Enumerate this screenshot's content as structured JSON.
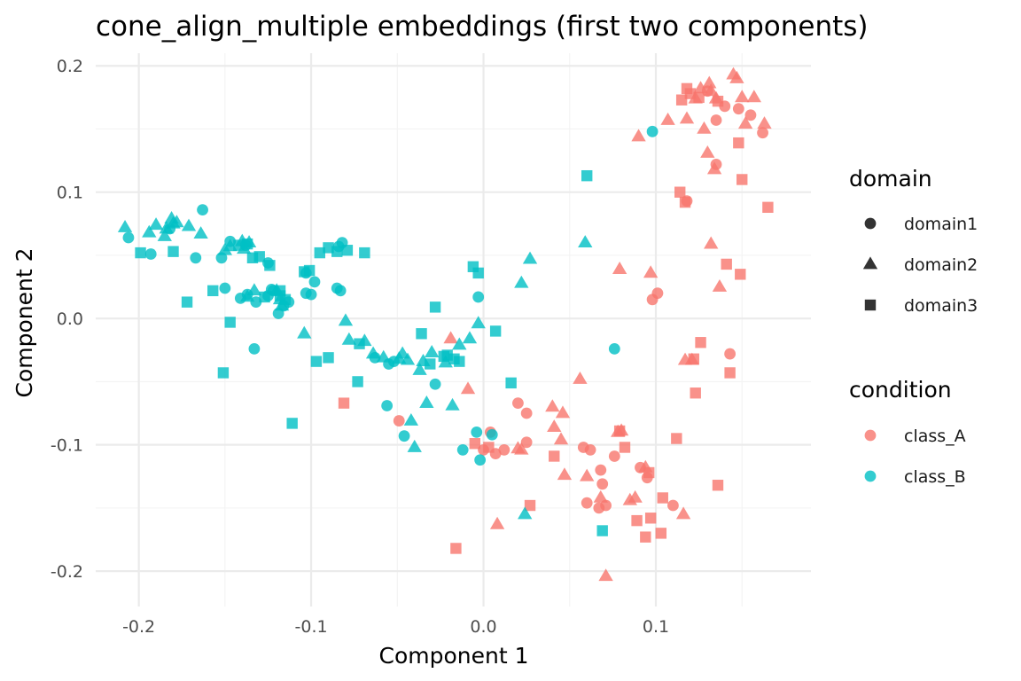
{
  "chart_data": {
    "type": "scatter",
    "title": "cone_align_multiple embeddings (first two components)",
    "xlabel": "Component 1",
    "ylabel": "Component 2",
    "xlim": [
      -0.225,
      0.19
    ],
    "ylim": [
      -0.228,
      0.21
    ],
    "x_ticks": [
      -0.2,
      -0.1,
      0.0,
      0.1
    ],
    "x_tick_labels": [
      "-0.2",
      "-0.1",
      "0.0",
      "0.1"
    ],
    "y_ticks": [
      -0.2,
      -0.1,
      0.0,
      0.1,
      0.2
    ],
    "y_tick_labels": [
      "-0.2",
      "-0.1",
      "0.0",
      "0.1",
      "0.2"
    ],
    "grid": true,
    "legend_position": "right",
    "legends": {
      "domain": {
        "title": "domain",
        "entries": [
          {
            "label": "domain1",
            "shape": "circle"
          },
          {
            "label": "domain2",
            "shape": "triangle"
          },
          {
            "label": "domain3",
            "shape": "square"
          }
        ]
      },
      "condition": {
        "title": "condition",
        "entries": [
          {
            "label": "class_A",
            "color": "#F8766D"
          },
          {
            "label": "class_B",
            "color": "#00BFC4"
          }
        ]
      }
    },
    "colors": {
      "class_A": "#F8766D",
      "class_B": "#00BFC4"
    },
    "series": [
      {
        "condition": "class_A",
        "domain": "domain1",
        "points": [
          [
            0.13,
            0.18
          ],
          [
            0.14,
            0.168
          ],
          [
            0.148,
            0.166
          ],
          [
            0.155,
            0.161
          ],
          [
            0.162,
            0.147
          ],
          [
            0.135,
            0.157
          ],
          [
            0.135,
            0.122
          ],
          [
            0.118,
            0.093
          ],
          [
            0.101,
            0.02
          ],
          [
            0.098,
            0.015
          ],
          [
            0.143,
            -0.028
          ],
          [
            0.02,
            -0.067
          ],
          [
            0.025,
            -0.075
          ],
          [
            0.004,
            -0.09
          ],
          [
            0.0,
            -0.104
          ],
          [
            0.007,
            -0.107
          ],
          [
            0.025,
            -0.098
          ],
          [
            0.058,
            -0.102
          ],
          [
            0.062,
            -0.104
          ],
          [
            0.068,
            -0.12
          ],
          [
            0.069,
            -0.131
          ],
          [
            0.06,
            -0.146
          ],
          [
            0.067,
            -0.15
          ],
          [
            0.071,
            -0.148
          ],
          [
            0.091,
            -0.118
          ],
          [
            0.095,
            -0.126
          ],
          [
            0.11,
            -0.148
          ],
          [
            -0.049,
            -0.081
          ],
          [
            0.012,
            -0.104
          ],
          [
            0.076,
            -0.109
          ]
        ]
      },
      {
        "condition": "class_A",
        "domain": "domain2",
        "points": [
          [
            0.145,
            0.193
          ],
          [
            0.147,
            0.19
          ],
          [
            0.126,
            0.182
          ],
          [
            0.131,
            0.186
          ],
          [
            0.123,
            0.174
          ],
          [
            0.135,
            0.174
          ],
          [
            0.132,
            0.18
          ],
          [
            0.15,
            0.175
          ],
          [
            0.157,
            0.175
          ],
          [
            0.152,
            0.154
          ],
          [
            0.163,
            0.154
          ],
          [
            0.118,
            0.158
          ],
          [
            0.128,
            0.15
          ],
          [
            0.107,
            0.157
          ],
          [
            0.09,
            0.144
          ],
          [
            0.13,
            0.131
          ],
          [
            0.134,
            0.118
          ],
          [
            0.132,
            0.059
          ],
          [
            0.137,
            0.025
          ],
          [
            0.079,
            0.039
          ],
          [
            0.097,
            0.036
          ],
          [
            0.117,
            -0.033
          ],
          [
            0.121,
            -0.033
          ],
          [
            -0.009,
            -0.056
          ],
          [
            -0.019,
            -0.016
          ],
          [
            0.02,
            -0.103
          ],
          [
            0.022,
            -0.104
          ],
          [
            0.04,
            -0.07
          ],
          [
            0.046,
            -0.075
          ],
          [
            0.041,
            -0.086
          ],
          [
            0.045,
            -0.096
          ],
          [
            0.056,
            -0.048
          ],
          [
            0.06,
            -0.125
          ],
          [
            0.068,
            -0.142
          ],
          [
            0.071,
            -0.204
          ],
          [
            0.08,
            -0.089
          ],
          [
            0.078,
            -0.09
          ],
          [
            0.094,
            -0.118
          ],
          [
            0.085,
            -0.144
          ],
          [
            0.088,
            -0.142
          ],
          [
            0.116,
            -0.155
          ],
          [
            0.047,
            -0.124
          ],
          [
            0.008,
            -0.163
          ]
        ]
      },
      {
        "condition": "class_A",
        "domain": "domain3",
        "points": [
          [
            0.118,
            0.182
          ],
          [
            0.12,
            0.178
          ],
          [
            0.115,
            0.173
          ],
          [
            0.125,
            0.175
          ],
          [
            0.136,
            0.172
          ],
          [
            0.148,
            0.139
          ],
          [
            0.15,
            0.11
          ],
          [
            0.114,
            0.1
          ],
          [
            0.117,
            0.092
          ],
          [
            0.165,
            0.088
          ],
          [
            0.141,
            0.043
          ],
          [
            0.149,
            0.035
          ],
          [
            0.126,
            -0.019
          ],
          [
            0.122,
            -0.032
          ],
          [
            0.143,
            -0.043
          ],
          [
            0.123,
            -0.059
          ],
          [
            0.112,
            -0.095
          ],
          [
            0.136,
            -0.132
          ],
          [
            0.104,
            -0.142
          ],
          [
            0.097,
            -0.158
          ],
          [
            0.089,
            -0.16
          ],
          [
            0.103,
            -0.17
          ],
          [
            0.094,
            -0.173
          ],
          [
            -0.081,
            -0.067
          ],
          [
            -0.016,
            -0.182
          ],
          [
            -0.005,
            -0.099
          ],
          [
            0.003,
            -0.102
          ],
          [
            0.027,
            -0.148
          ],
          [
            0.041,
            -0.109
          ],
          [
            0.079,
            -0.089
          ],
          [
            0.082,
            -0.102
          ],
          [
            0.096,
            -0.122
          ]
        ]
      },
      {
        "condition": "class_B",
        "domain": "domain1",
        "points": [
          [
            -0.206,
            0.064
          ],
          [
            -0.193,
            0.051
          ],
          [
            -0.182,
            0.071
          ],
          [
            -0.167,
            0.048
          ],
          [
            -0.163,
            0.086
          ],
          [
            -0.152,
            0.048
          ],
          [
            -0.147,
            0.061
          ],
          [
            -0.138,
            0.058
          ],
          [
            -0.15,
            0.024
          ],
          [
            -0.137,
            0.019
          ],
          [
            -0.125,
            0.018
          ],
          [
            -0.119,
            0.004
          ],
          [
            -0.116,
            0.01
          ],
          [
            -0.122,
            0.022
          ],
          [
            -0.103,
            0.036
          ],
          [
            -0.098,
            0.029
          ],
          [
            -0.082,
            0.06
          ],
          [
            -0.084,
            0.057
          ],
          [
            -0.083,
            0.022
          ],
          [
            -0.085,
            0.024
          ],
          [
            -0.103,
            0.02
          ],
          [
            -0.063,
            -0.031
          ],
          [
            -0.055,
            -0.036
          ],
          [
            -0.052,
            -0.034
          ],
          [
            -0.056,
            -0.069
          ],
          [
            -0.046,
            -0.093
          ],
          [
            -0.028,
            -0.052
          ],
          [
            -0.012,
            -0.104
          ],
          [
            -0.002,
            -0.112
          ],
          [
            -0.004,
            -0.09
          ],
          [
            0.005,
            -0.092
          ],
          [
            -0.003,
            0.017
          ],
          [
            0.076,
            -0.024
          ],
          [
            0.098,
            0.148
          ],
          [
            -0.132,
            0.013
          ],
          [
            -0.141,
            0.016
          ],
          [
            -0.123,
            0.023
          ],
          [
            -0.113,
            0.013
          ],
          [
            -0.1,
            0.019
          ],
          [
            -0.125,
            0.044
          ],
          [
            -0.133,
            -0.024
          ]
        ]
      },
      {
        "condition": "class_B",
        "domain": "domain2",
        "points": [
          [
            -0.208,
            0.072
          ],
          [
            -0.194,
            0.068
          ],
          [
            -0.19,
            0.074
          ],
          [
            -0.184,
            0.071
          ],
          [
            -0.181,
            0.079
          ],
          [
            -0.178,
            0.076
          ],
          [
            -0.171,
            0.073
          ],
          [
            -0.164,
            0.067
          ],
          [
            -0.15,
            0.054
          ],
          [
            -0.147,
            0.057
          ],
          [
            -0.14,
            0.061
          ],
          [
            -0.136,
            0.06
          ],
          [
            -0.139,
            0.055
          ],
          [
            -0.133,
            0.022
          ],
          [
            -0.137,
            0.017
          ],
          [
            -0.12,
            0.022
          ],
          [
            -0.117,
            0.01
          ],
          [
            -0.118,
            0.015
          ],
          [
            -0.104,
            -0.012
          ],
          [
            -0.08,
            -0.002
          ],
          [
            -0.078,
            -0.017
          ],
          [
            -0.069,
            -0.018
          ],
          [
            -0.064,
            -0.028
          ],
          [
            -0.058,
            -0.031
          ],
          [
            -0.049,
            -0.032
          ],
          [
            -0.047,
            -0.028
          ],
          [
            -0.044,
            -0.033
          ],
          [
            -0.037,
            -0.041
          ],
          [
            -0.035,
            -0.034
          ],
          [
            -0.03,
            -0.027
          ],
          [
            -0.033,
            -0.067
          ],
          [
            -0.022,
            -0.035
          ],
          [
            -0.018,
            -0.069
          ],
          [
            -0.014,
            -0.021
          ],
          [
            -0.008,
            -0.016
          ],
          [
            -0.003,
            -0.004
          ],
          [
            -0.042,
            -0.081
          ],
          [
            -0.04,
            -0.102
          ],
          [
            0.022,
            0.028
          ],
          [
            0.027,
            0.047
          ],
          [
            0.059,
            0.06
          ],
          [
            0.024,
            -0.155
          ],
          [
            -0.18,
            0.075
          ],
          [
            -0.185,
            0.065
          ]
        ]
      },
      {
        "condition": "class_B",
        "domain": "domain3",
        "points": [
          [
            -0.199,
            0.052
          ],
          [
            -0.18,
            0.053
          ],
          [
            -0.172,
            0.013
          ],
          [
            -0.157,
            0.022
          ],
          [
            -0.127,
            0.017
          ],
          [
            -0.124,
            0.042
          ],
          [
            -0.118,
            0.022
          ],
          [
            -0.142,
            0.058
          ],
          [
            -0.13,
            0.049
          ],
          [
            -0.134,
            0.048
          ],
          [
            -0.137,
            0.059
          ],
          [
            -0.101,
            0.038
          ],
          [
            -0.095,
            0.052
          ],
          [
            -0.09,
            0.056
          ],
          [
            -0.085,
            0.053
          ],
          [
            -0.079,
            0.054
          ],
          [
            -0.069,
            0.052
          ],
          [
            -0.104,
            0.037
          ],
          [
            -0.147,
            -0.003
          ],
          [
            -0.151,
            -0.043
          ],
          [
            -0.111,
            -0.083
          ],
          [
            -0.097,
            -0.034
          ],
          [
            -0.09,
            -0.031
          ],
          [
            -0.073,
            -0.05
          ],
          [
            -0.072,
            -0.02
          ],
          [
            -0.036,
            -0.012
          ],
          [
            -0.028,
            0.009
          ],
          [
            -0.014,
            -0.034
          ],
          [
            -0.023,
            -0.03
          ],
          [
            -0.031,
            -0.036
          ],
          [
            -0.006,
            0.041
          ],
          [
            -0.003,
            0.036
          ],
          [
            0.007,
            -0.01
          ],
          [
            0.06,
            0.113
          ],
          [
            0.016,
            -0.051
          ],
          [
            0.069,
            -0.168
          ],
          [
            -0.118,
            0.018
          ],
          [
            -0.115,
            0.015
          ],
          [
            -0.021,
            -0.029
          ],
          [
            -0.017,
            -0.032
          ]
        ]
      }
    ]
  }
}
